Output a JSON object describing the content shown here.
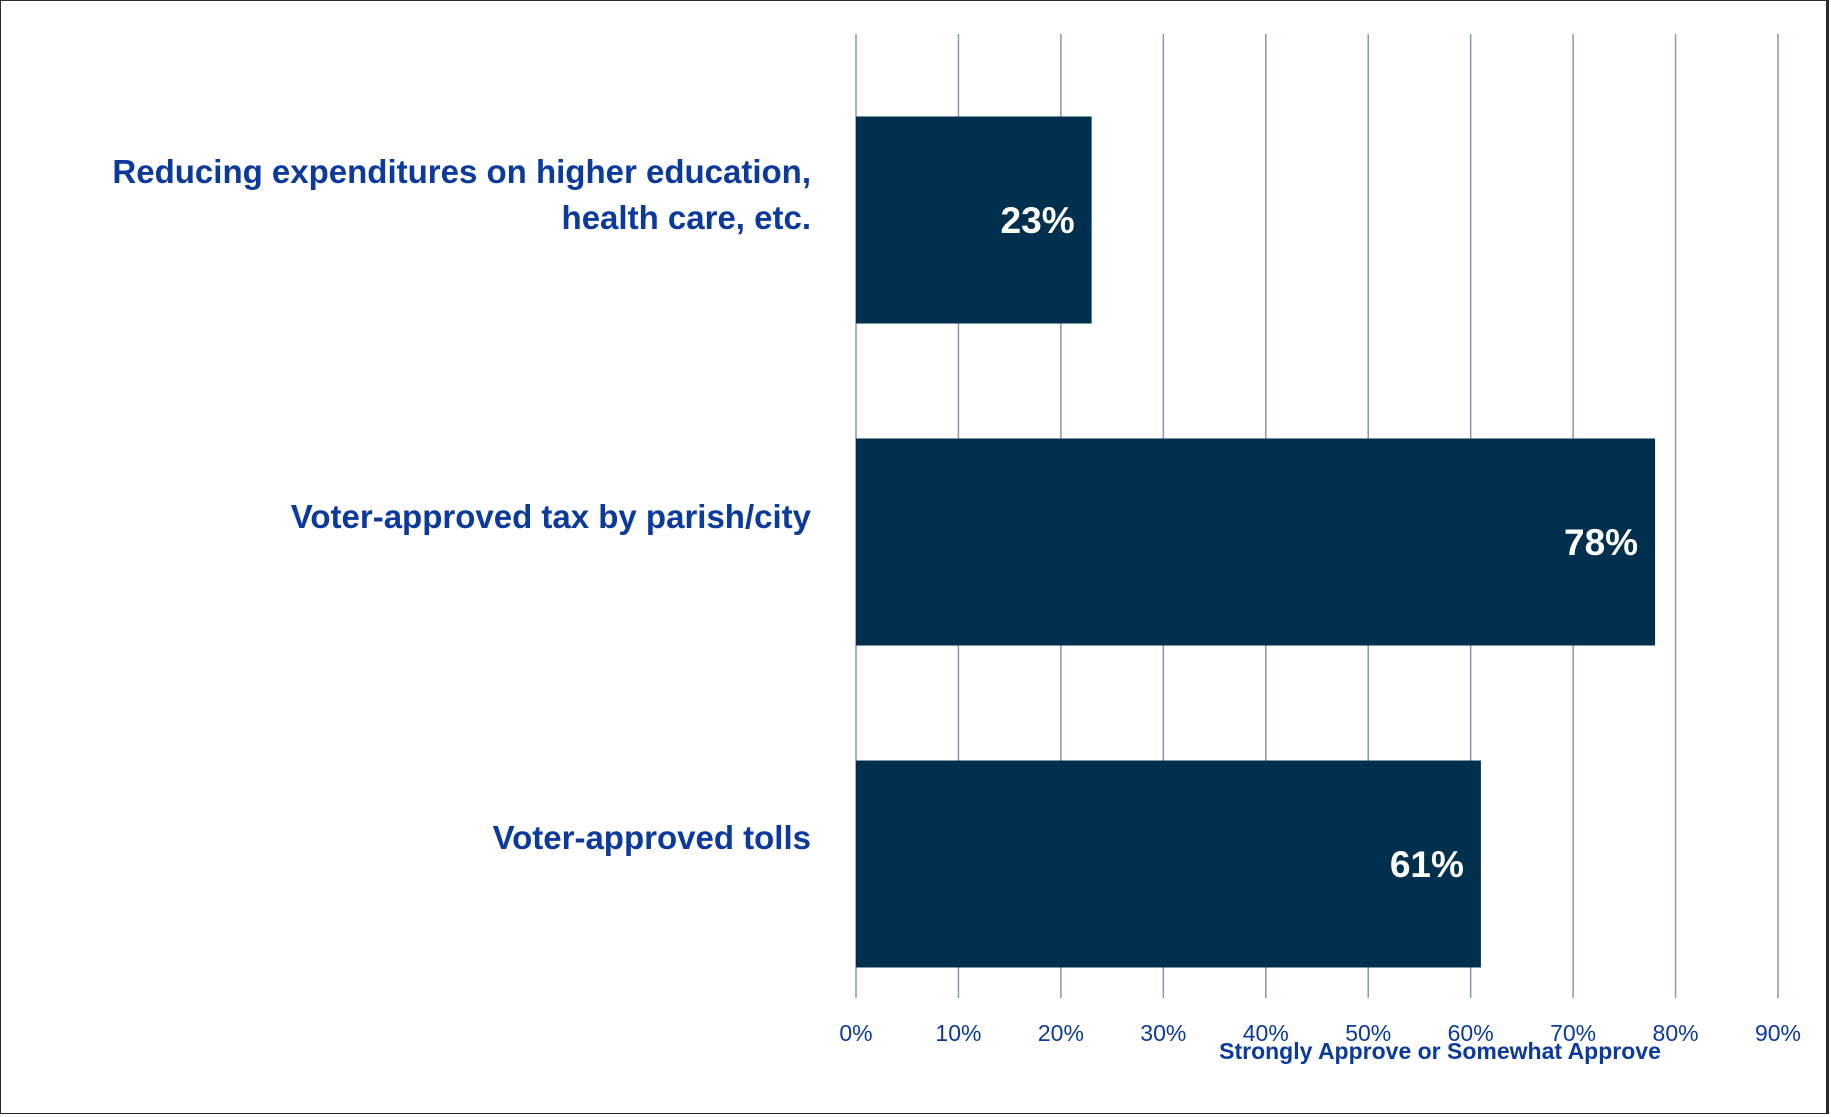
{
  "chart_data": {
    "type": "bar",
    "orientation": "horizontal",
    "categories": [
      "Reducing expenditures on higher education, health care, etc.",
      "Voter-approved tax by parish/city",
      "Voter-approved tolls"
    ],
    "values": [
      23,
      78,
      61
    ],
    "data_labels": [
      "23%",
      "78%",
      "61%"
    ],
    "xlabel": "Strongly Approve or Somewhat Approve",
    "ylabel": "",
    "xlim": [
      0,
      90
    ],
    "x_ticks": [
      "0%",
      "10%",
      "20%",
      "30%",
      "40%",
      "50%",
      "60%",
      "70%",
      "80%",
      "90%"
    ],
    "grid": true,
    "legend": "none",
    "colors": {
      "bar": "#00304d",
      "gridline": "#8a93b8",
      "label_text": "#0b3a9c",
      "data_label_text": "#ffffff"
    }
  }
}
